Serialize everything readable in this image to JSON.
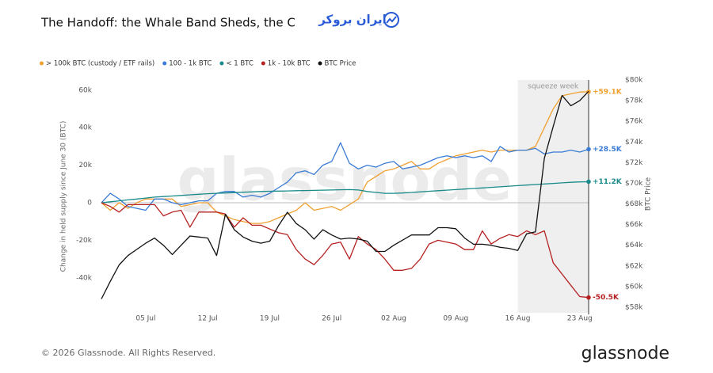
{
  "header": {
    "brand": "ایران بروکر"
  },
  "footer": {
    "copyright": "© 2026 Glassnode. All Rights Reserved.",
    "logo": "glassnode"
  },
  "chart_data": {
    "type": "line",
    "title": "The Handoff: the Whale Band Sheds, the Cu",
    "watermark": "glassnode",
    "y_label": "Change in held supply since June 30 (BTC)",
    "y2_label": "BTC Price",
    "highlight": {
      "label": "squeeze week",
      "start": 47,
      "end": 55
    },
    "categories": [
      null,
      null,
      null,
      null,
      null,
      "05 Jul",
      null,
      null,
      null,
      null,
      null,
      null,
      "12 Jul",
      null,
      null,
      null,
      null,
      null,
      null,
      "19 Jul",
      null,
      null,
      null,
      null,
      null,
      null,
      "26 Jul",
      null,
      null,
      null,
      null,
      null,
      null,
      "02 Aug",
      null,
      null,
      null,
      null,
      null,
      null,
      "09 Aug",
      null,
      null,
      null,
      null,
      null,
      null,
      "16 Aug",
      null,
      null,
      null,
      null,
      null,
      null,
      "23 Aug",
      null
    ],
    "ylim": [
      -58650,
      65400
    ],
    "yticks": [
      {
        "value": 60000,
        "label": "60k"
      },
      {
        "value": 40000,
        "label": "40k"
      },
      {
        "value": 20000,
        "label": "20k"
      },
      0,
      {
        "value": -20000,
        "label": "-20k"
      },
      {
        "value": -40000,
        "label": "-40k"
      }
    ],
    "y2lim": [
      57460,
      80000
    ],
    "y2ticks": [
      {
        "value": 80000,
        "label": "$80k"
      },
      {
        "value": 78000,
        "label": "$78k"
      },
      {
        "value": 76000,
        "label": "$76k"
      },
      {
        "value": 74000,
        "label": "$74k"
      },
      {
        "value": 72000,
        "label": "$72k"
      },
      {
        "value": 70000,
        "label": "$70k"
      },
      {
        "value": 68000,
        "label": "$68k"
      },
      {
        "value": 66000,
        "label": "$66k"
      },
      {
        "value": 64000,
        "label": "$64k"
      },
      {
        "value": 62000,
        "label": "$62k"
      },
      {
        "value": 60000,
        "label": "$60k"
      },
      {
        "value": 58000,
        "label": "$58k"
      }
    ],
    "grid": false,
    "series": [
      {
        "name": "> 100k BTC (custody / ETF rails)",
        "color": "#f0a030",
        "end_label": "+59.1K",
        "values": [
          0,
          -4000,
          0,
          -3000,
          0,
          2000,
          2000,
          2000,
          2000,
          -2000,
          -1000,
          0,
          0,
          -5000,
          -7000,
          -9000,
          -10000,
          -11000,
          -11000,
          -10000,
          -8000,
          -6000,
          -4000,
          0,
          -4000,
          -3000,
          -2000,
          -4000,
          -1000,
          2000,
          11000,
          14000,
          17000,
          18000,
          20000,
          22000,
          18000,
          18000,
          21000,
          23000,
          25000,
          26000,
          27000,
          28000,
          27000,
          28000,
          28000,
          28000,
          28000,
          30000,
          40000,
          50000,
          57000,
          58000,
          59000,
          59100
        ]
      },
      {
        "name": "100 - 1k BTC",
        "color": "#3a7bd5",
        "end_label": "+28.5K",
        "values": [
          0,
          5000,
          2000,
          -2000,
          -3000,
          -4000,
          2000,
          2000,
          0,
          -1000,
          0,
          1000,
          1000,
          5000,
          6000,
          6000,
          3000,
          4000,
          3000,
          5000,
          8000,
          11000,
          16000,
          17000,
          15000,
          20000,
          22000,
          32000,
          21000,
          18000,
          20000,
          19000,
          21000,
          22000,
          18000,
          19000,
          20000,
          22000,
          24000,
          25000,
          24000,
          25000,
          24000,
          25000,
          22000,
          30000,
          27000,
          28000,
          28000,
          29000,
          26000,
          27000,
          27000,
          28000,
          27000,
          28500
        ]
      },
      {
        "name": "< 1 BTC",
        "color": "#1a8a8a",
        "end_label": "+11.2K",
        "values": [
          0,
          500,
          1000,
          1500,
          2000,
          2500,
          3000,
          3300,
          3600,
          3900,
          4200,
          4500,
          4800,
          5000,
          5200,
          5400,
          5600,
          5800,
          6000,
          6100,
          6200,
          6300,
          6400,
          6500,
          6600,
          6700,
          6800,
          6900,
          7000,
          6800,
          6000,
          5500,
          5000,
          5000,
          5200,
          5500,
          5800,
          6100,
          6400,
          6700,
          7000,
          7300,
          7600,
          7900,
          8200,
          8500,
          8800,
          9100,
          9400,
          9700,
          10000,
          10300,
          10600,
          10900,
          11100,
          11200
        ]
      },
      {
        "name": "1k - 10k BTC",
        "color": "#b52020",
        "end_label": "-50.5K",
        "values": [
          0,
          -2000,
          -5000,
          -1000,
          -1000,
          -1000,
          -1000,
          -7000,
          -5000,
          -4000,
          -13000,
          -5000,
          -5000,
          -5000,
          -6000,
          -13000,
          -8000,
          -12000,
          -12000,
          -14000,
          -16000,
          -17000,
          -25000,
          -30000,
          -33000,
          -28000,
          -22000,
          -21000,
          -30000,
          -18000,
          -22000,
          -25000,
          -30000,
          -36000,
          -36000,
          -35000,
          -30000,
          -22000,
          -20000,
          -21000,
          -22000,
          -25000,
          -25000,
          -15000,
          -22000,
          -19000,
          -17000,
          -18000,
          -15000,
          -17000,
          -15000,
          -32000,
          -38000,
          -44000,
          -50000,
          -50500
        ]
      },
      {
        "name": "BTC Price",
        "color": "#111111",
        "axis": "y2",
        "values": [
          58800,
          60500,
          62100,
          63000,
          63600,
          64200,
          64700,
          64000,
          63100,
          64000,
          64900,
          64800,
          64700,
          63000,
          67000,
          65500,
          64800,
          64400,
          64200,
          64400,
          65900,
          67200,
          66100,
          65500,
          64600,
          65500,
          65000,
          64600,
          64700,
          64600,
          64400,
          63400,
          63400,
          64000,
          64500,
          65000,
          65000,
          65000,
          65700,
          65700,
          65600,
          64700,
          64100,
          64100,
          64000,
          63800,
          63700,
          63500,
          65100,
          65300,
          72400,
          75500,
          78500,
          77500,
          78000,
          78900
        ]
      }
    ]
  }
}
